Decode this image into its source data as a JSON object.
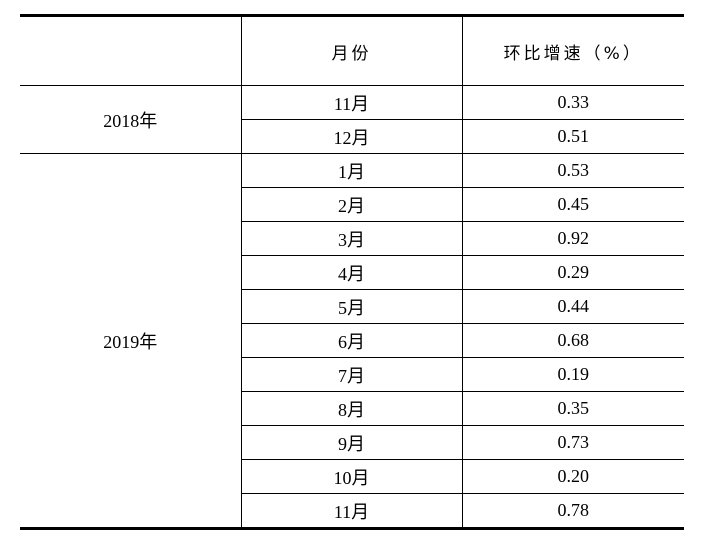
{
  "table": {
    "headers": [
      "",
      "月份",
      "环比增速（%）"
    ],
    "groups": [
      {
        "year": "2018年",
        "rows": [
          {
            "month": "11月",
            "value": "0.33"
          },
          {
            "month": "12月",
            "value": "0.51"
          }
        ]
      },
      {
        "year": "2019年",
        "rows": [
          {
            "month": "1月",
            "value": "0.53"
          },
          {
            "month": "2月",
            "value": "0.45"
          },
          {
            "month": "3月",
            "value": "0.92"
          },
          {
            "month": "4月",
            "value": "0.29"
          },
          {
            "month": "5月",
            "value": "0.44"
          },
          {
            "month": "6月",
            "value": "0.68"
          },
          {
            "month": "7月",
            "value": "0.19"
          },
          {
            "month": "8月",
            "value": "0.35"
          },
          {
            "month": "9月",
            "value": "0.73"
          },
          {
            "month": "10月",
            "value": "0.20"
          },
          {
            "month": "11月",
            "value": "0.78"
          }
        ]
      }
    ]
  }
}
